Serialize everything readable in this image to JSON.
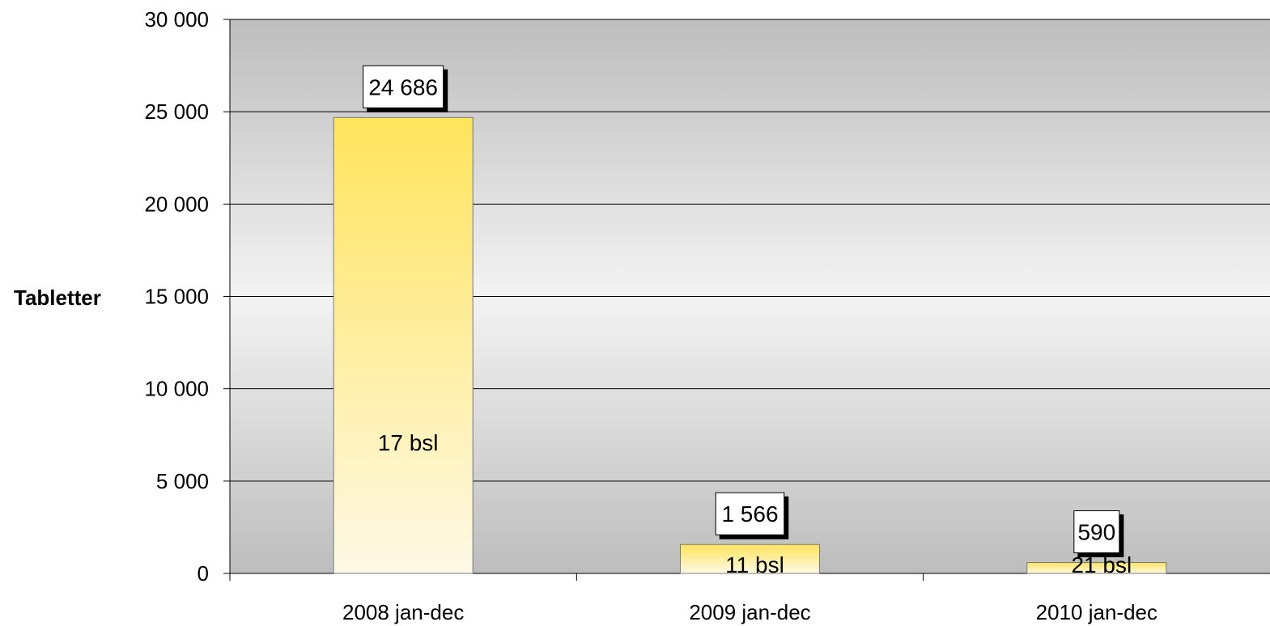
{
  "chart_data": {
    "type": "bar",
    "categories": [
      "2008 jan-dec",
      "2009 jan-dec",
      "2010 jan-dec"
    ],
    "values": [
      24686,
      1566,
      590
    ],
    "data_labels": [
      "24 686",
      "1 566",
      "590"
    ],
    "inner_labels": [
      "17 bsl",
      "11 bsl",
      "21 bsl"
    ],
    "ylabel": "Tabletter",
    "ylim": [
      0,
      30000
    ],
    "yticks": [
      0,
      5000,
      10000,
      15000,
      20000,
      25000,
      30000
    ],
    "ytick_labels": [
      "0",
      "5 000",
      "10 000",
      "15 000",
      "20 000",
      "25 000",
      "30 000"
    ],
    "grid": true,
    "colors": {
      "bar_top": "#FFE45C",
      "bar_bottom": "#FEF9E6",
      "plot_dark": "#BDBDBD",
      "plot_light": "#F3F3F3"
    }
  }
}
